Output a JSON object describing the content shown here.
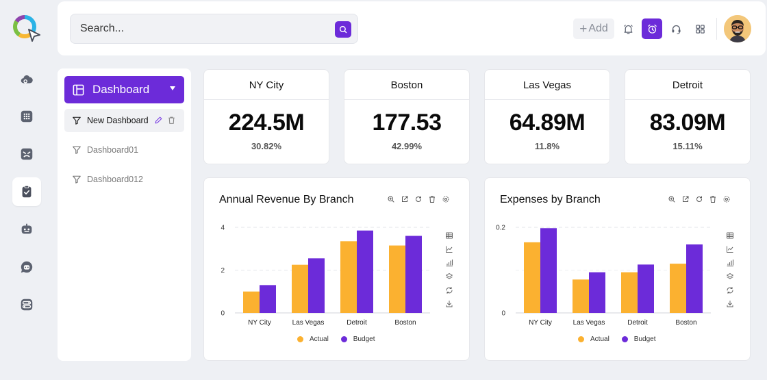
{
  "header": {
    "search_placeholder": "Search...",
    "add_label": "Add"
  },
  "sidebar": {
    "dashboard_label": "Dashboard",
    "items": [
      {
        "label": "New Dashboard"
      },
      {
        "label": "Dashboard01"
      },
      {
        "label": "Dashboard012"
      }
    ]
  },
  "kpis": [
    {
      "city": "NY City",
      "value": "224.5M",
      "pct": "30.82%"
    },
    {
      "city": "Boston",
      "value": "177.53",
      "pct": "42.99%"
    },
    {
      "city": "Las Vegas",
      "value": "64.89M",
      "pct": "11.8%"
    },
    {
      "city": "Detroit",
      "value": "83.09M",
      "pct": "15.11%"
    }
  ],
  "colors": {
    "accent": "#6c2bd9",
    "actual": "#fbb130",
    "budget": "#6c2bd9"
  },
  "chart_data": [
    {
      "type": "bar",
      "title": "Annual Revenue By Branch",
      "categories": [
        "NY City",
        "Las Vegas",
        "Detroit",
        "Boston"
      ],
      "series": [
        {
          "name": "Actual",
          "values": [
            1.0,
            2.25,
            3.35,
            3.15
          ]
        },
        {
          "name": "Budget",
          "values": [
            1.3,
            2.55,
            3.85,
            3.6
          ]
        }
      ],
      "yticks": [
        "0",
        "2",
        "4"
      ],
      "ylim": [
        0,
        4
      ],
      "grid": true,
      "legend": "bottom"
    },
    {
      "type": "bar",
      "title": "Expenses by Branch",
      "categories": [
        "NY City",
        "Las Vegas",
        "Detroit",
        "Boston"
      ],
      "series": [
        {
          "name": "Actual",
          "values": [
            0.165,
            0.078,
            0.095,
            0.115
          ]
        },
        {
          "name": "Budget",
          "values": [
            0.198,
            0.095,
            0.113,
            0.16
          ]
        }
      ],
      "yticks": [
        "0",
        "0.2"
      ],
      "ylim": [
        0,
        0.2
      ],
      "grid": true,
      "legend": "bottom"
    }
  ]
}
